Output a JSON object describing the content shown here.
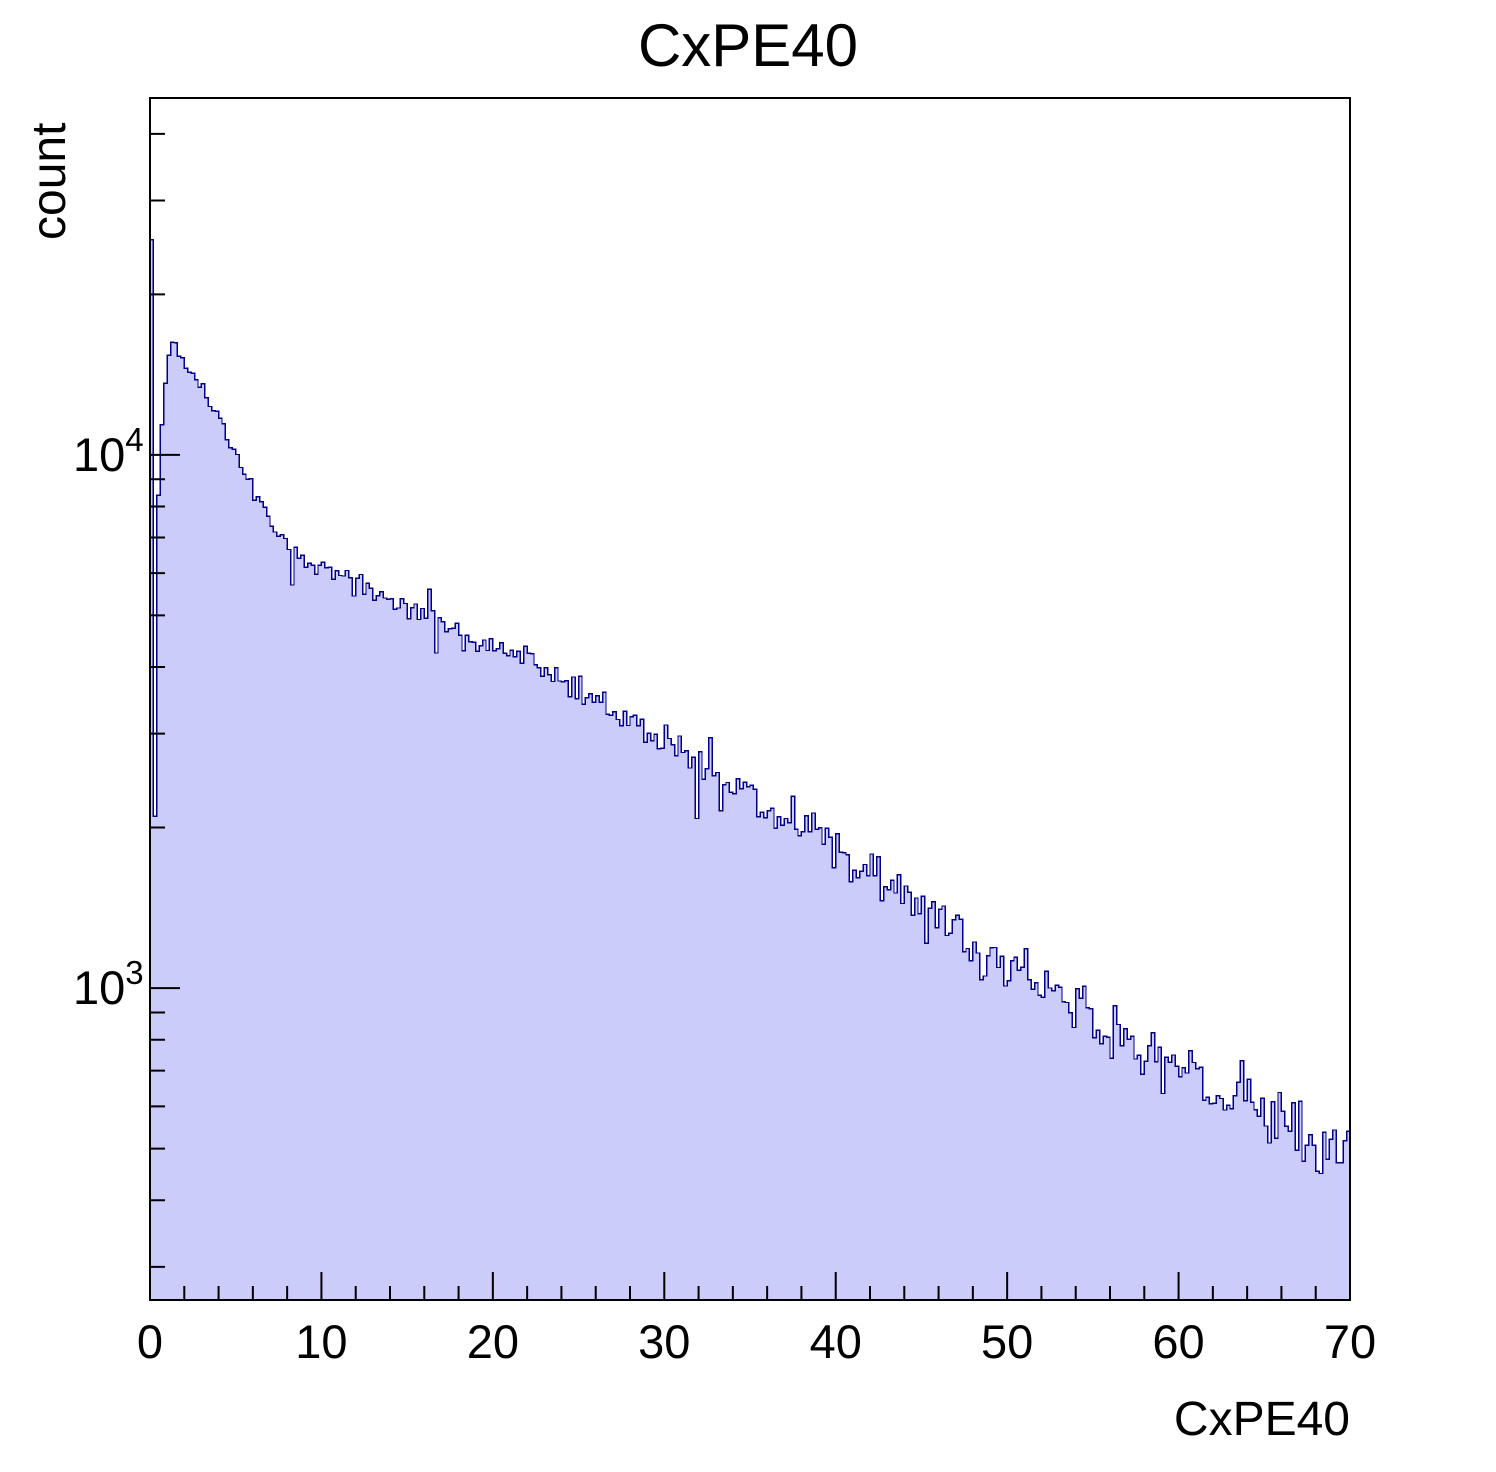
{
  "page": {
    "background": "#ffffff"
  },
  "chart_data": {
    "type": "histogram",
    "title": "CxPE40",
    "xlabel": "CxPE40",
    "ylabel": "count",
    "x_range": [
      0,
      70
    ],
    "y_scale": "log",
    "y_range": [
      260,
      46700
    ],
    "x_ticks_major": [
      0,
      10,
      20,
      30,
      40,
      50,
      60,
      70
    ],
    "x_minor_step": 2,
    "y_ticks_labeled": [
      {
        "value": 1000,
        "base": "10",
        "exp": "3"
      },
      {
        "value": 10000,
        "base": "10",
        "exp": "4"
      }
    ],
    "grid": false,
    "bins": {
      "count": 350,
      "xmin": 0,
      "xmax": 70
    },
    "envelope": [
      [
        0.0,
        6500
      ],
      [
        0.4,
        7000
      ],
      [
        0.6,
        9800
      ],
      [
        0.8,
        12500
      ],
      [
        1.0,
        15000
      ],
      [
        1.3,
        16800
      ],
      [
        1.6,
        15800
      ],
      [
        2.0,
        14900
      ],
      [
        2.5,
        14100
      ],
      [
        3.0,
        13300
      ],
      [
        3.5,
        12500
      ],
      [
        4.0,
        11700
      ],
      [
        4.5,
        10900
      ],
      [
        5.0,
        10100
      ],
      [
        5.5,
        9400
      ],
      [
        6.0,
        8700
      ],
      [
        6.5,
        8050
      ],
      [
        7.0,
        7500
      ],
      [
        7.5,
        7100
      ],
      [
        8.0,
        6800
      ],
      [
        9.0,
        6400
      ],
      [
        10.0,
        6150
      ],
      [
        11.0,
        5950
      ],
      [
        12.0,
        5750
      ],
      [
        13.0,
        5550
      ],
      [
        14.0,
        5350
      ],
      [
        15.0,
        5180
      ],
      [
        16.0,
        5020
      ],
      [
        17.0,
        4860
      ],
      [
        18.0,
        4700
      ],
      [
        19.0,
        4550
      ],
      [
        20.0,
        4400
      ],
      [
        21.0,
        4250
      ],
      [
        22.0,
        4100
      ],
      [
        23.0,
        3950
      ],
      [
        24.0,
        3800
      ],
      [
        25.0,
        3650
      ],
      [
        26.0,
        3500
      ],
      [
        27.0,
        3350
      ],
      [
        28.0,
        3200
      ],
      [
        29.0,
        3050
      ],
      [
        30.0,
        2900
      ],
      [
        31.0,
        2780
      ],
      [
        32.0,
        2650
      ],
      [
        33.0,
        2520
      ],
      [
        34.0,
        2400
      ],
      [
        35.0,
        2300
      ],
      [
        36.0,
        2180
      ],
      [
        37.0,
        2080
      ],
      [
        38.0,
        1980
      ],
      [
        39.0,
        1890
      ],
      [
        40.0,
        1800
      ],
      [
        41.0,
        1710
      ],
      [
        42.0,
        1630
      ],
      [
        43.0,
        1550
      ],
      [
        44.0,
        1480
      ],
      [
        45.0,
        1410
      ],
      [
        46.0,
        1340
      ],
      [
        47.0,
        1280
      ],
      [
        48.0,
        1220
      ],
      [
        49.0,
        1160
      ],
      [
        50.0,
        1110
      ],
      [
        51.0,
        1060
      ],
      [
        52.0,
        1010
      ],
      [
        53.0,
        960
      ],
      [
        54.0,
        915
      ],
      [
        55.0,
        875
      ],
      [
        56.0,
        835
      ],
      [
        57.0,
        800
      ],
      [
        58.0,
        765
      ],
      [
        59.0,
        730
      ],
      [
        60.0,
        700
      ],
      [
        61.0,
        670
      ],
      [
        62.0,
        645
      ],
      [
        63.0,
        620
      ],
      [
        64.0,
        595
      ],
      [
        65.0,
        570
      ],
      [
        66.0,
        550
      ],
      [
        67.0,
        530
      ],
      [
        68.0,
        510
      ],
      [
        69.0,
        495
      ],
      [
        70.0,
        480
      ]
    ],
    "spikes": [
      [
        0.0,
        25300
      ],
      [
        0.2,
        2100
      ],
      [
        8.2,
        5700
      ],
      [
        16.2,
        5600
      ],
      [
        16.5,
        4250
      ],
      [
        31.9,
        2080
      ],
      [
        32.5,
        2950
      ],
      [
        33.1,
        2150
      ]
    ],
    "noise": {
      "seed": 20240613,
      "scale": 2.0
    },
    "colors": {
      "fill": "#ccccfa",
      "line": "#00008c",
      "axis": "#000000",
      "text": "#000000"
    }
  }
}
